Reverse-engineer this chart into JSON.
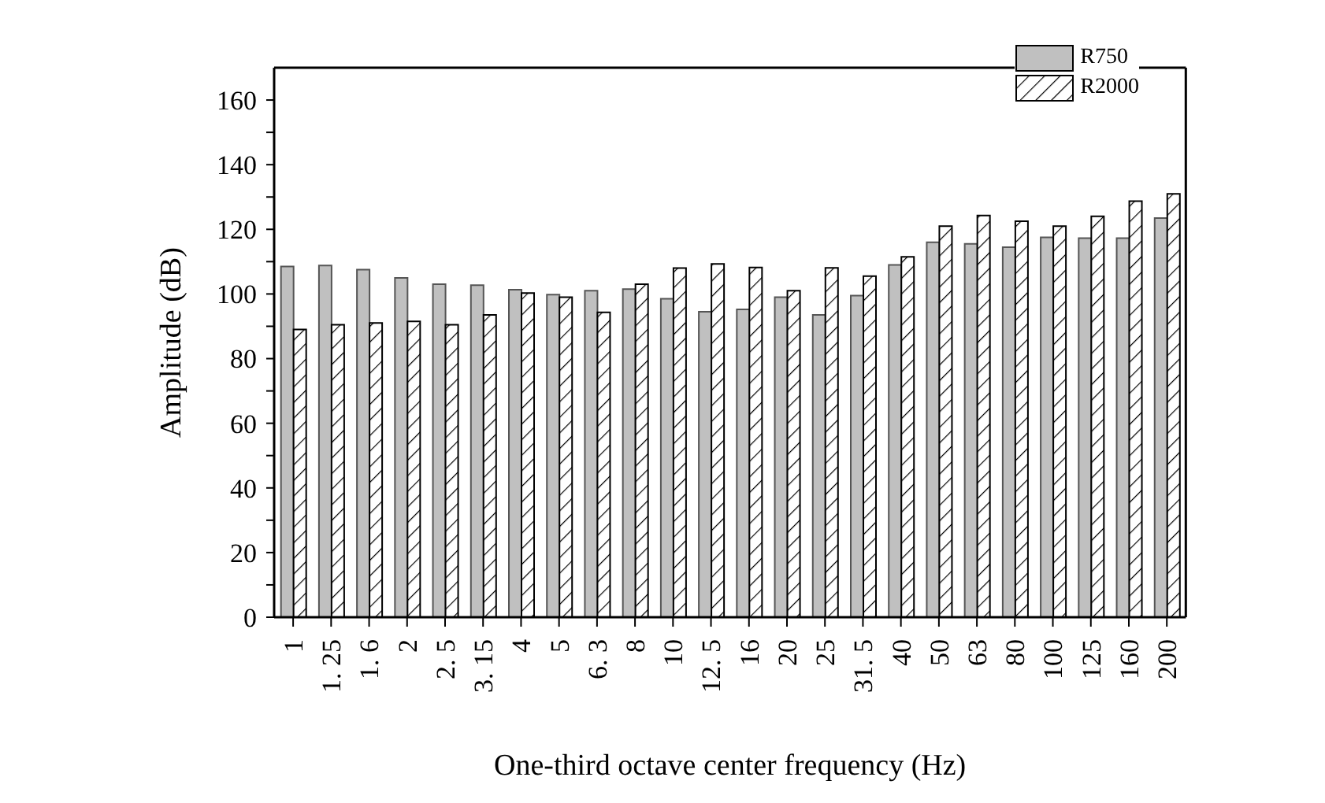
{
  "chart_data": {
    "type": "bar",
    "xlabel": "One-third octave center frequency (Hz)",
    "ylabel": "Amplitude (dB)",
    "categories": [
      "1",
      "1. 25",
      "1. 6",
      "2",
      "2. 5",
      "3. 15",
      "4",
      "5",
      "6. 3",
      "8",
      "10",
      "12. 5",
      "16",
      "20",
      "25",
      "31. 5",
      "40",
      "50",
      "63",
      "80",
      "100",
      "125",
      "160",
      "200"
    ],
    "series": [
      {
        "name": "R750",
        "color": "#c0c0c0",
        "values": [
          108.5,
          108.8,
          107.5,
          105,
          103,
          102.7,
          101.3,
          99.8,
          101,
          101.5,
          98.5,
          94.5,
          95.2,
          99,
          93.5,
          99.5,
          109,
          116,
          115.5,
          114.5,
          117.5,
          117.3,
          117.3,
          123.5
        ]
      },
      {
        "name": "R2000",
        "color": "#000000",
        "values": [
          89,
          90.5,
          91,
          91.5,
          90.5,
          93.5,
          100.3,
          99,
          94.3,
          103,
          108,
          109.3,
          108.2,
          101,
          108.1,
          105.5,
          111.5,
          121,
          124.3,
          122.5,
          121,
          124,
          128.7,
          131
        ]
      }
    ],
    "ylim": [
      0,
      170
    ],
    "yticks": [
      0,
      {
        "value": 10,
        "label": null
      },
      20,
      {
        "value": 30,
        "label": null
      },
      40,
      {
        "value": 50,
        "label": null
      },
      60,
      {
        "value": 70,
        "label": null
      },
      80,
      {
        "value": 90,
        "label": null
      },
      100,
      {
        "value": 110,
        "label": null
      },
      120,
      {
        "value": 130,
        "label": null
      },
      140,
      {
        "value": 150,
        "label": null
      },
      160
    ],
    "grid": false,
    "legend": "top right"
  }
}
